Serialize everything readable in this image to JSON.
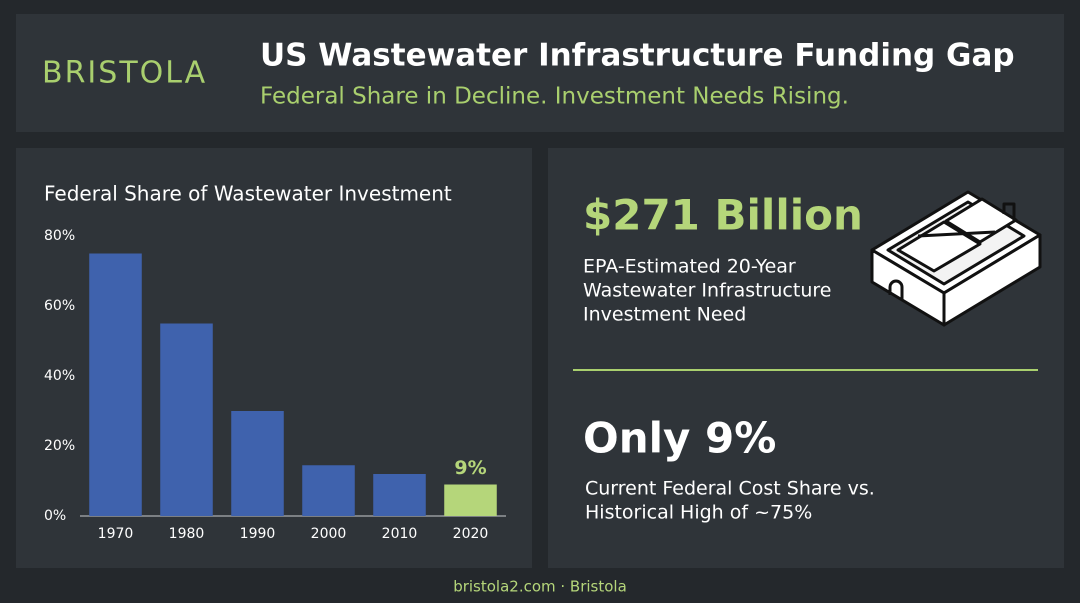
{
  "header": {
    "logo": "BRISTOLA",
    "title": "US Wastewater Infrastructure Funding Gap",
    "subtitle": "Federal Share in Decline. Investment Needs Rising."
  },
  "chart_data": {
    "type": "bar",
    "title": "Federal Share of Wastewater Investment",
    "categories": [
      "1970",
      "1980",
      "1990",
      "2000",
      "2010",
      "2020"
    ],
    "values": [
      75,
      55,
      30,
      14.5,
      12,
      9
    ],
    "value_labels": [
      null,
      null,
      null,
      null,
      null,
      "9%"
    ],
    "colors": [
      "#3f62ad",
      "#3f62ad",
      "#3f62ad",
      "#3f62ad",
      "#3f62ad",
      "#b5d67a"
    ],
    "ylim": [
      0,
      80
    ],
    "yticks": [
      {
        "value": 0,
        "label": "0%"
      },
      {
        "value": 20,
        "label": "20%"
      },
      {
        "value": 40,
        "label": "40%"
      },
      {
        "value": 60,
        "label": "60%"
      },
      {
        "value": 80,
        "label": "80%"
      }
    ]
  },
  "stats": [
    {
      "headline": "$271 Billion",
      "lines": [
        "EPA-Estimated 20-Year",
        "Wastewater Infrastructure",
        "Investment Need"
      ]
    },
    {
      "headline": "Only 9%",
      "lines": [
        "Current Federal Cost Share vs.",
        "Historical High of ~75%"
      ]
    }
  ],
  "footer": "bristola2.com · Bristola"
}
